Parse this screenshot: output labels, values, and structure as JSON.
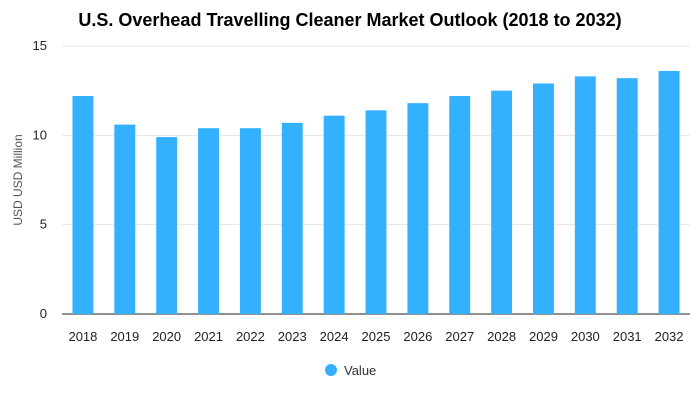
{
  "chart_data": {
    "type": "bar",
    "title": "U.S. Overhead Travelling Cleaner Market Outlook (2018 to 2032)",
    "xlabel": "",
    "ylabel": "USD USD Million",
    "categories": [
      "2018",
      "2019",
      "2020",
      "2021",
      "2022",
      "2023",
      "2024",
      "2025",
      "2026",
      "2027",
      "2028",
      "2029",
      "2030",
      "2031",
      "2032"
    ],
    "series": [
      {
        "name": "Value",
        "values": [
          12.2,
          10.6,
          9.9,
          10.4,
          10.4,
          10.7,
          11.1,
          11.4,
          11.8,
          12.2,
          12.5,
          12.9,
          13.3,
          13.2,
          13.6
        ],
        "color": "#33b1ff"
      }
    ],
    "ylim": [
      0,
      15
    ],
    "yticks": [
      0,
      5,
      10,
      15
    ],
    "grid": true,
    "legend_position": "bottom-center"
  }
}
